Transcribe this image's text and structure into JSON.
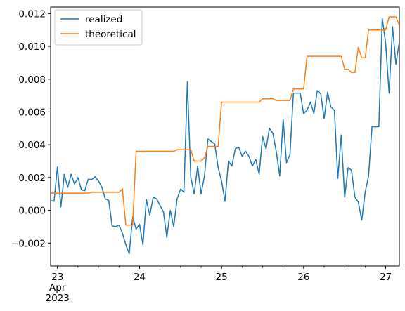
{
  "chart_data": {
    "type": "line",
    "title": "",
    "xlabel": "",
    "ylabel": "",
    "xlim": [
      "2023-04-22 22:00",
      "2023-04-27 04:00"
    ],
    "ylim": [
      -0.0034,
      0.0124
    ],
    "grid": false,
    "legend": "top-left",
    "x_ticks": [
      {
        "value": "2023-04-23",
        "label": "23",
        "sub": [
          "Apr",
          "2023"
        ]
      },
      {
        "value": "2023-04-24",
        "label": "24"
      },
      {
        "value": "2023-04-25",
        "label": "25"
      },
      {
        "value": "2023-04-26",
        "label": "26"
      },
      {
        "value": "2023-04-27",
        "label": "27"
      }
    ],
    "y_ticks": [
      {
        "value": -0.002,
        "label": "−0.002"
      },
      {
        "value": 0.0,
        "label": "0.000"
      },
      {
        "value": 0.002,
        "label": "0.002"
      },
      {
        "value": 0.004,
        "label": "0.004"
      },
      {
        "value": 0.006,
        "label": "0.006"
      },
      {
        "value": 0.008,
        "label": "0.008"
      },
      {
        "value": 0.01,
        "label": "0.010"
      },
      {
        "value": 0.012,
        "label": "0.012"
      }
    ],
    "series": [
      {
        "name": "realized",
        "color": "#1f77b4",
        "points": [
          [
            "2023-04-22 22:00",
            0.0006
          ],
          [
            "2023-04-22 23:00",
            0.00055
          ],
          [
            "2023-04-23 00:00",
            0.00265
          ],
          [
            "2023-04-23 01:00",
            0.0002
          ],
          [
            "2023-04-23 02:00",
            0.0022
          ],
          [
            "2023-04-23 03:00",
            0.0014
          ],
          [
            "2023-04-23 04:00",
            0.0022
          ],
          [
            "2023-04-23 05:00",
            0.0016
          ],
          [
            "2023-04-23 06:00",
            0.002
          ],
          [
            "2023-04-23 07:00",
            0.00125
          ],
          [
            "2023-04-23 08:00",
            0.0012
          ],
          [
            "2023-04-23 09:00",
            0.0019
          ],
          [
            "2023-04-23 10:00",
            0.00188
          ],
          [
            "2023-04-23 11:00",
            0.00205
          ],
          [
            "2023-04-23 12:00",
            0.0018
          ],
          [
            "2023-04-23 13:00",
            0.0014
          ],
          [
            "2023-04-23 14:00",
            0.0007
          ],
          [
            "2023-04-23 15:00",
            0.0006
          ],
          [
            "2023-04-23 16:00",
            -0.00095
          ],
          [
            "2023-04-23 17:00",
            -0.001
          ],
          [
            "2023-04-23 18:00",
            -0.0009
          ],
          [
            "2023-04-23 19:00",
            -0.0014
          ],
          [
            "2023-04-23 20:00",
            -0.0021
          ],
          [
            "2023-04-23 21:00",
            -0.00265
          ],
          [
            "2023-04-23 22:00",
            -0.0004
          ],
          [
            "2023-04-23 23:00",
            -0.00115
          ],
          [
            "2023-04-24 00:00",
            -0.00085
          ],
          [
            "2023-04-24 01:00",
            -0.0021
          ],
          [
            "2023-04-24 02:00",
            0.00065
          ],
          [
            "2023-04-24 03:00",
            -0.0003
          ],
          [
            "2023-04-24 04:00",
            0.0008
          ],
          [
            "2023-04-24 05:00",
            0.0007
          ],
          [
            "2023-04-24 06:00",
            0.0003
          ],
          [
            "2023-04-24 07:00",
            -0.0001
          ],
          [
            "2023-04-24 08:00",
            -0.00165
          ],
          [
            "2023-04-24 09:00",
            0.0
          ],
          [
            "2023-04-24 10:00",
            -0.001
          ],
          [
            "2023-04-24 11:00",
            0.0007
          ],
          [
            "2023-04-24 12:00",
            0.0013
          ],
          [
            "2023-04-24 13:00",
            0.0011
          ],
          [
            "2023-04-24 14:00",
            0.00785
          ],
          [
            "2023-04-24 15:00",
            0.002
          ],
          [
            "2023-04-24 16:00",
            0.001
          ],
          [
            "2023-04-24 17:00",
            0.0027
          ],
          [
            "2023-04-24 18:00",
            0.001
          ],
          [
            "2023-04-24 19:00",
            0.0021
          ],
          [
            "2023-04-24 20:00",
            0.00435
          ],
          [
            "2023-04-24 21:00",
            0.0042
          ],
          [
            "2023-04-24 22:00",
            0.00405
          ],
          [
            "2023-04-24 23:00",
            0.0026
          ],
          [
            "2023-04-25 00:00",
            0.0018
          ],
          [
            "2023-04-25 01:00",
            0.00055
          ],
          [
            "2023-04-25 02:00",
            0.003
          ],
          [
            "2023-04-25 03:00",
            0.0027
          ],
          [
            "2023-04-25 04:00",
            0.00375
          ],
          [
            "2023-04-25 05:00",
            0.00385
          ],
          [
            "2023-04-25 06:00",
            0.0033
          ],
          [
            "2023-04-25 07:00",
            0.0036
          ],
          [
            "2023-04-25 08:00",
            0.0033
          ],
          [
            "2023-04-25 09:00",
            0.0027
          ],
          [
            "2023-04-25 10:00",
            0.0031
          ],
          [
            "2023-04-25 11:00",
            0.0022
          ],
          [
            "2023-04-25 12:00",
            0.0045
          ],
          [
            "2023-04-25 13:00",
            0.00375
          ],
          [
            "2023-04-25 14:00",
            0.005
          ],
          [
            "2023-04-25 15:00",
            0.0047
          ],
          [
            "2023-04-25 16:00",
            0.0036
          ],
          [
            "2023-04-25 17:00",
            0.0021
          ],
          [
            "2023-04-25 18:00",
            0.00555
          ],
          [
            "2023-04-25 19:00",
            0.0029
          ],
          [
            "2023-04-25 20:00",
            0.0034
          ],
          [
            "2023-04-25 21:00",
            0.00715
          ],
          [
            "2023-04-25 22:00",
            0.00715
          ],
          [
            "2023-04-25 23:00",
            0.00715
          ],
          [
            "2023-04-26 00:00",
            0.0059
          ],
          [
            "2023-04-26 01:00",
            0.0061
          ],
          [
            "2023-04-26 02:00",
            0.0066
          ],
          [
            "2023-04-26 03:00",
            0.0059
          ],
          [
            "2023-04-26 04:00",
            0.0073
          ],
          [
            "2023-04-26 05:00",
            0.0071
          ],
          [
            "2023-04-26 06:00",
            0.0056
          ],
          [
            "2023-04-26 07:00",
            0.0072
          ],
          [
            "2023-04-26 08:00",
            0.0063
          ],
          [
            "2023-04-26 09:00",
            0.0061
          ],
          [
            "2023-04-26 10:00",
            0.00195
          ],
          [
            "2023-04-26 11:00",
            0.0046
          ],
          [
            "2023-04-26 12:00",
            0.0008
          ],
          [
            "2023-04-26 13:00",
            0.0026
          ],
          [
            "2023-04-26 14:00",
            0.00245
          ],
          [
            "2023-04-26 15:00",
            0.0008
          ],
          [
            "2023-04-26 16:00",
            0.0005
          ],
          [
            "2023-04-26 17:00",
            -0.0006
          ],
          [
            "2023-04-26 18:00",
            0.0011
          ],
          [
            "2023-04-26 19:00",
            0.0021
          ],
          [
            "2023-04-26 20:00",
            0.0051
          ],
          [
            "2023-04-26 21:00",
            0.0051
          ],
          [
            "2023-04-26 22:00",
            0.0051
          ],
          [
            "2023-04-26 23:00",
            0.0117
          ],
          [
            "2023-04-27 00:00",
            0.0102
          ],
          [
            "2023-04-27 01:00",
            0.00715
          ],
          [
            "2023-04-27 02:00",
            0.0112
          ],
          [
            "2023-04-27 03:00",
            0.0089
          ],
          [
            "2023-04-27 04:00",
            0.0103
          ]
        ]
      },
      {
        "name": "theoretical",
        "color": "#ff7f0e",
        "points": [
          [
            "2023-04-22 22:00",
            0.00105
          ],
          [
            "2023-04-23 09:00",
            0.00105
          ],
          [
            "2023-04-23 10:00",
            0.0011
          ],
          [
            "2023-04-23 18:00",
            0.0011
          ],
          [
            "2023-04-23 19:00",
            0.0013
          ],
          [
            "2023-04-23 20:00",
            -0.0009
          ],
          [
            "2023-04-23 22:00",
            -0.0009
          ],
          [
            "2023-04-23 23:00",
            0.0036
          ],
          [
            "2023-04-24 10:00",
            0.0036
          ],
          [
            "2023-04-24 11:00",
            0.0037
          ],
          [
            "2023-04-24 15:00",
            0.0037
          ],
          [
            "2023-04-24 16:00",
            0.003
          ],
          [
            "2023-04-24 18:00",
            0.003
          ],
          [
            "2023-04-24 19:00",
            0.0032
          ],
          [
            "2023-04-24 20:00",
            0.0039
          ],
          [
            "2023-04-24 23:00",
            0.0039
          ],
          [
            "2023-04-25 00:00",
            0.0066
          ],
          [
            "2023-04-25 11:00",
            0.0066
          ],
          [
            "2023-04-25 12:00",
            0.0068
          ],
          [
            "2023-04-25 15:00",
            0.0068
          ],
          [
            "2023-04-25 16:00",
            0.0067
          ],
          [
            "2023-04-25 19:00",
            0.0067
          ],
          [
            "2023-04-25 20:00",
            0.0067
          ],
          [
            "2023-04-25 21:00",
            0.0074
          ],
          [
            "2023-04-26 00:00",
            0.0074
          ],
          [
            "2023-04-26 01:00",
            0.0094
          ],
          [
            "2023-04-26 11:00",
            0.0094
          ],
          [
            "2023-04-26 12:00",
            0.0086
          ],
          [
            "2023-04-26 13:00",
            0.0086
          ],
          [
            "2023-04-26 14:00",
            0.0084
          ],
          [
            "2023-04-26 15:00",
            0.0084
          ],
          [
            "2023-04-26 16:00",
            0.00995
          ],
          [
            "2023-04-26 17:00",
            0.0093
          ],
          [
            "2023-04-26 18:00",
            0.0093
          ],
          [
            "2023-04-26 19:00",
            0.011
          ],
          [
            "2023-04-27 00:00",
            0.011
          ],
          [
            "2023-04-27 01:00",
            0.0118
          ],
          [
            "2023-04-27 03:00",
            0.0118
          ],
          [
            "2023-04-27 04:00",
            0.0113
          ]
        ]
      }
    ]
  }
}
